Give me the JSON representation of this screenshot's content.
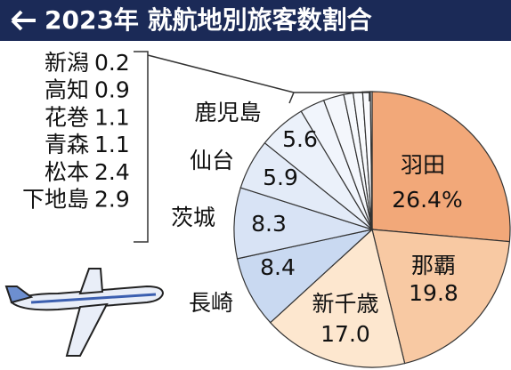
{
  "chart_data": {
    "type": "pie",
    "title": "2023年 就航地別旅客数割合",
    "categories": [
      "羽田",
      "那覇",
      "新千歳",
      "長崎",
      "茨城",
      "仙台",
      "鹿児島",
      "下地島",
      "松本",
      "青森",
      "花巻",
      "高知",
      "新潟"
    ],
    "values": [
      26.4,
      19.8,
      17.0,
      8.4,
      8.3,
      5.9,
      5.6,
      2.9,
      2.4,
      1.1,
      1.1,
      0.9,
      0.2
    ],
    "value_labels": [
      "26.4%",
      "19.8",
      "17.0",
      "8.4",
      "8.3",
      "5.9",
      "5.6",
      "2.9",
      "2.4",
      "1.1",
      "1.1",
      "0.9",
      "0.2"
    ],
    "colors": [
      "#f2a879",
      "#f8c9a3",
      "#fde7cf",
      "#c9d9f1",
      "#d8e3f5",
      "#e3ebf8",
      "#ebf1fa",
      "#f1f5fc",
      "#f4f7fc",
      "#f6f9fd",
      "#f8fafd",
      "#fafbfe",
      "#fcfdfe"
    ]
  }
}
